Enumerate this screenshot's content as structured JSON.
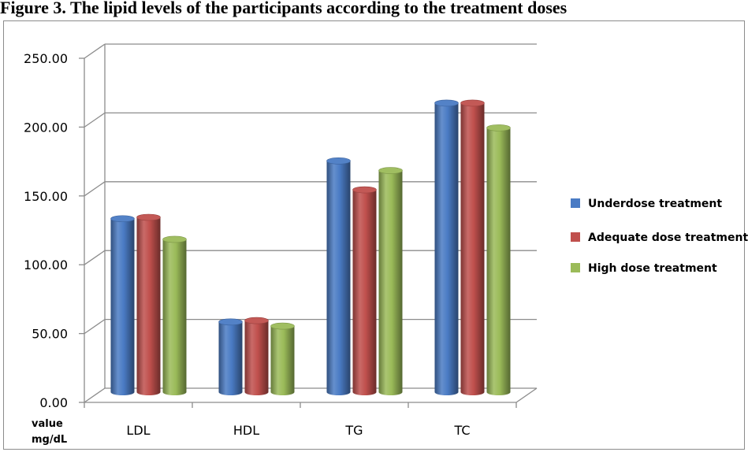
{
  "figure_title": "Figure 3. The lipid levels of the participants according to the treatment doses",
  "chart_data": {
    "type": "bar",
    "title": "Figure 3. The lipid levels of the participants according to the treatment doses",
    "ylabel_lines": [
      "value",
      "mg/dL"
    ],
    "categories": [
      "LDL",
      "HDL",
      "TG",
      "TC"
    ],
    "series": [
      {
        "name": "Underdose treatment",
        "color": "#4a7bc4",
        "values": [
          126,
          51,
          168,
          210
        ]
      },
      {
        "name": "Adequate dose treatment",
        "color": "#c0504d",
        "values": [
          127,
          52,
          147,
          210
        ]
      },
      {
        "name": "High dose treatment",
        "color": "#9bbb59",
        "values": [
          111,
          48,
          161,
          192
        ]
      }
    ],
    "yticks": [
      "0.00",
      "50.00",
      "100.00",
      "150.00",
      "200.00",
      "250.00"
    ],
    "ylim": [
      0,
      250
    ],
    "grid": true,
    "legend": "right",
    "style": "3d-cylinder"
  }
}
